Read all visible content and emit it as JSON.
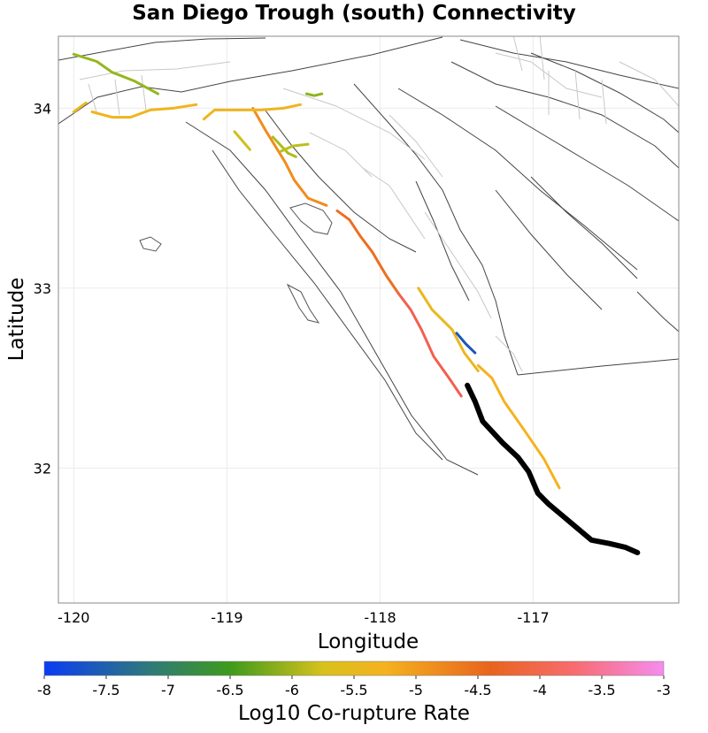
{
  "chart_data": {
    "type": "map",
    "title": "San Diego Trough (south) Connectivity",
    "xlabel": "Longitude",
    "ylabel": "Latitude",
    "xlim": [
      -120.1,
      -116.05
    ],
    "ylim": [
      31.25,
      34.4
    ],
    "xticks": [
      -120,
      -119,
      -118,
      -117
    ],
    "xtick_labels": [
      "-120",
      "-119",
      "-118",
      "-117"
    ],
    "yticks": [
      32,
      33,
      34
    ],
    "ytick_labels": [
      "32",
      "33",
      "34"
    ],
    "grid": true,
    "colorbar": {
      "label": "Log10 Co-rupture Rate",
      "min": -8,
      "max": -3,
      "ticks": [
        -8,
        -7.5,
        -7,
        -6.5,
        -6,
        -5.5,
        -5,
        -4.5,
        -4,
        -3.5,
        -3
      ],
      "tick_labels": [
        "-8",
        "-7.5",
        "-7",
        "-6.5",
        "-6",
        "-5.5",
        "-5",
        "-4.5",
        "-4",
        "-3.5",
        "-3"
      ],
      "colors": [
        "#0a3cf5",
        "#3e9b1c",
        "#d8c11c",
        "#f5b21f",
        "#e8641d",
        "#f76b6b",
        "#f58cef"
      ]
    },
    "selected_section": {
      "name": "San Diego Trough (south)",
      "color": "#000000",
      "points": [
        [
          -117.43,
          32.46
        ],
        [
          -117.38,
          32.37
        ],
        [
          -117.33,
          32.26
        ],
        [
          -117.2,
          32.14
        ],
        [
          -117.1,
          32.06
        ],
        [
          -117.03,
          31.98
        ],
        [
          -116.97,
          31.86
        ],
        [
          -116.9,
          31.8
        ],
        [
          -116.76,
          31.7
        ],
        [
          -116.62,
          31.6
        ],
        [
          -116.5,
          31.58
        ],
        [
          -116.4,
          31.56
        ],
        [
          -116.32,
          31.53
        ]
      ]
    },
    "series": [
      {
        "log10_rate": -4.6,
        "points": [
          [
            -118.83,
            34.0
          ],
          [
            -118.75,
            33.88
          ],
          [
            -118.62,
            33.7
          ],
          [
            -118.56,
            33.6
          ],
          [
            -118.47,
            33.5
          ],
          [
            -118.35,
            33.46
          ]
        ]
      },
      {
        "log10_rate": -4.3,
        "points": [
          [
            -118.28,
            33.43
          ],
          [
            -118.2,
            33.38
          ],
          [
            -118.13,
            33.29
          ],
          [
            -118.05,
            33.2
          ],
          [
            -117.96,
            33.07
          ],
          [
            -117.88,
            32.97
          ]
        ]
      },
      {
        "log10_rate": -3.7,
        "points": [
          [
            -117.88,
            32.97
          ],
          [
            -117.8,
            32.88
          ],
          [
            -117.73,
            32.77
          ],
          [
            -117.65,
            32.62
          ],
          [
            -117.55,
            32.5
          ],
          [
            -117.47,
            32.4
          ]
        ]
      },
      {
        "log10_rate": -5.2,
        "points": [
          [
            -117.75,
            33.0
          ],
          [
            -117.66,
            32.88
          ],
          [
            -117.53,
            32.77
          ],
          [
            -117.45,
            32.64
          ],
          [
            -117.36,
            32.54
          ]
        ]
      },
      {
        "log10_rate": -7.7,
        "points": [
          [
            -117.5,
            32.75
          ],
          [
            -117.44,
            32.69
          ],
          [
            -117.38,
            32.64
          ]
        ]
      },
      {
        "log10_rate": -5.0,
        "points": [
          [
            -117.36,
            32.57
          ],
          [
            -117.27,
            32.5
          ],
          [
            -117.19,
            32.37
          ],
          [
            -117.05,
            32.2
          ],
          [
            -116.93,
            32.05
          ],
          [
            -116.83,
            31.89
          ]
        ]
      },
      {
        "log10_rate": -5.2,
        "points": [
          [
            -120.0,
            33.98
          ],
          [
            -119.92,
            34.03
          ]
        ]
      },
      {
        "log10_rate": -5.1,
        "points": [
          [
            -119.88,
            33.98
          ],
          [
            -119.75,
            33.95
          ],
          [
            -119.63,
            33.95
          ],
          [
            -119.5,
            33.99
          ],
          [
            -119.35,
            34.0
          ],
          [
            -119.2,
            34.02
          ]
        ]
      },
      {
        "log10_rate": -5.1,
        "points": [
          [
            -119.15,
            33.94
          ],
          [
            -119.08,
            33.99
          ],
          [
            -118.95,
            33.99
          ],
          [
            -118.78,
            33.99
          ],
          [
            -118.63,
            34.0
          ],
          [
            -118.52,
            34.02
          ]
        ]
      },
      {
        "log10_rate": -6.2,
        "points": [
          [
            -120.0,
            34.3
          ],
          [
            -119.85,
            34.26
          ],
          [
            -119.75,
            34.2
          ],
          [
            -119.6,
            34.15
          ],
          [
            -119.45,
            34.08
          ]
        ]
      },
      {
        "log10_rate": -5.6,
        "points": [
          [
            -118.95,
            33.87
          ],
          [
            -118.85,
            33.77
          ]
        ]
      },
      {
        "log10_rate": -6.0,
        "points": [
          [
            -118.7,
            33.84
          ],
          [
            -118.6,
            33.75
          ],
          [
            -118.55,
            33.73
          ]
        ]
      },
      {
        "log10_rate": -5.8,
        "points": [
          [
            -118.65,
            33.76
          ],
          [
            -118.57,
            33.79
          ],
          [
            -118.47,
            33.8
          ]
        ]
      },
      {
        "log10_rate": -6.3,
        "points": [
          [
            -118.48,
            34.08
          ],
          [
            -118.43,
            34.07
          ],
          [
            -118.38,
            34.08
          ]
        ]
      }
    ]
  }
}
